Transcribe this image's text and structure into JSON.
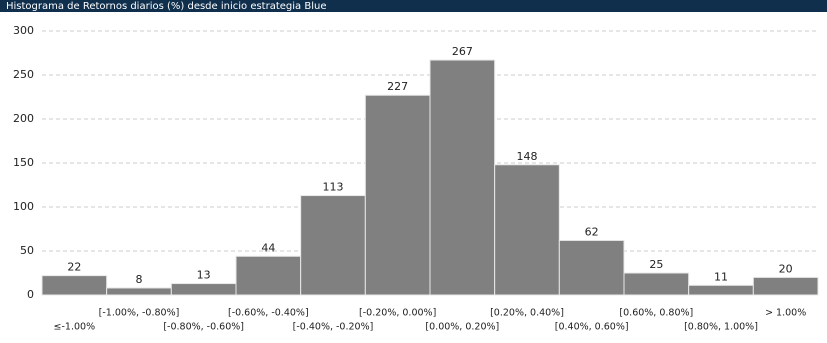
{
  "chart_data": {
    "type": "bar",
    "title": "Histograma de Retornos diarios (%) desde inicio estrategia Blue",
    "categories": [
      "≤-1.00%",
      "[-1.00%, -0.80%]",
      "[-0.80%, -0.60%]",
      "[-0.60%, -0.40%]",
      "[-0.40%, -0.20%]",
      "[-0.20%, 0.00%]",
      "[0.00%, 0.20%]",
      "[0.20%, 0.40%]",
      "[0.40%, 0.60%]",
      "[0.60%, 0.80%]",
      "[0.80%, 1.00%]",
      "> 1.00%"
    ],
    "values": [
      22,
      8,
      13,
      44,
      113,
      227,
      267,
      148,
      62,
      25,
      11,
      20
    ],
    "color": "#808080",
    "ylim": [
      0,
      300
    ],
    "yticks": [
      0,
      50,
      100,
      150,
      200,
      250,
      300
    ],
    "grid": true
  }
}
